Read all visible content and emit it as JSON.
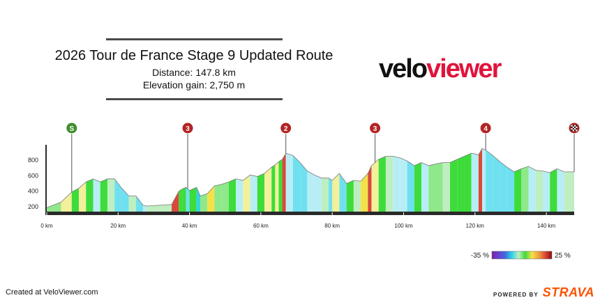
{
  "header": {
    "title": "2026 Tour de France Stage 9 Updated Route",
    "distance_line": "Distance: 147.8 km",
    "elevation_line": "Elevation gain: 2,750 m"
  },
  "logo": {
    "part1": "velo",
    "part2": "viewer"
  },
  "footer": {
    "credit": "Created at VeloViewer.com",
    "powered": "POWERED BY",
    "brand": "STRAVA"
  },
  "colors": {
    "brand": "#e0143c",
    "strava": "#fc5200",
    "axis": "#333333"
  },
  "chart_data": {
    "type": "area",
    "x": [
      0,
      4,
      7,
      9,
      11,
      13,
      15,
      17,
      19,
      21,
      23,
      25,
      27,
      28,
      35,
      37,
      38,
      39,
      40,
      42,
      43,
      45,
      47,
      49,
      51,
      53,
      55,
      57,
      59,
      61,
      63,
      64,
      65,
      66,
      67,
      69,
      71,
      73,
      75,
      77,
      79,
      80,
      82,
      84,
      86,
      88,
      90,
      91,
      93,
      95,
      97,
      99,
      101,
      103,
      105,
      107,
      109,
      111,
      113,
      115,
      117,
      119,
      121,
      122,
      123,
      125,
      127,
      129,
      131,
      133,
      135,
      137,
      139,
      141,
      143,
      145,
      147.8
    ],
    "y": [
      180,
      250,
      380,
      430,
      510,
      550,
      510,
      550,
      550,
      430,
      330,
      330,
      210,
      200,
      220,
      390,
      420,
      440,
      400,
      440,
      330,
      360,
      460,
      480,
      510,
      550,
      530,
      600,
      580,
      620,
      700,
      730,
      770,
      800,
      880,
      850,
      760,
      650,
      600,
      560,
      560,
      530,
      620,
      490,
      530,
      520,
      620,
      720,
      800,
      840,
      840,
      820,
      780,
      720,
      760,
      720,
      740,
      760,
      760,
      800,
      840,
      880,
      860,
      940,
      920,
      850,
      770,
      700,
      640,
      680,
      710,
      660,
      650,
      630,
      680,
      640,
      640
    ],
    "xlabel": "",
    "ylabel": "",
    "x_ticks": [
      0,
      20,
      40,
      60,
      80,
      100,
      120,
      140
    ],
    "x_tick_labels": [
      "0 km",
      "20 km",
      "40 km",
      "60 km",
      "80 km",
      "100 km",
      "120 km",
      "140 km"
    ],
    "y_ticks": [
      200,
      400,
      600,
      800
    ],
    "y_tick_labels": [
      "200",
      "400",
      "600",
      "800"
    ],
    "xlim": [
      0,
      147.8
    ],
    "ylim": [
      80,
      1000
    ],
    "markers": [
      {
        "label": "S",
        "km": 7,
        "color": "#3f8f2c",
        "kind": "start"
      },
      {
        "label": "3",
        "km": 39.5,
        "color": "#b32424",
        "kind": "climb"
      },
      {
        "label": "2",
        "km": 67,
        "color": "#b32424",
        "kind": "climb"
      },
      {
        "label": "3",
        "km": 92,
        "color": "#b32424",
        "kind": "climb"
      },
      {
        "label": "4",
        "km": 123,
        "color": "#b32424",
        "kind": "climb"
      },
      {
        "label": "",
        "km": 147.8,
        "color": "#b32424",
        "kind": "finish"
      }
    ],
    "legend": {
      "min_label": "-35 %",
      "max_label": "25 %"
    }
  }
}
